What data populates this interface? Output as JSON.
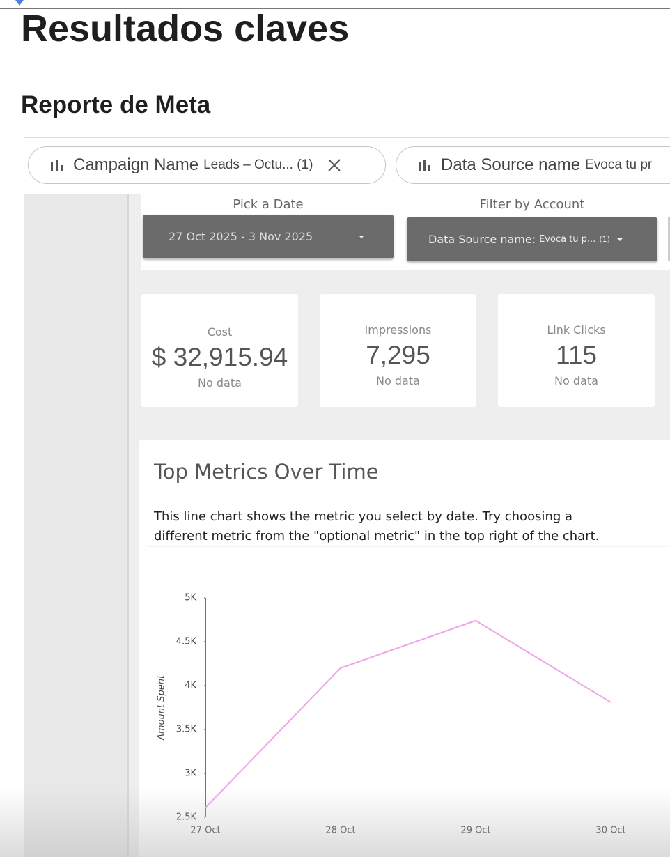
{
  "header": {
    "title": "Resultados claves",
    "subtitle": "Reporte de Meta"
  },
  "filter_chips": [
    {
      "field": "Campaign Name",
      "value": "Leads – Octu... (1)"
    },
    {
      "field": "Data Source name",
      "value": "Evoca tu pr"
    }
  ],
  "controls": [
    {
      "label": "Pick a Date",
      "value": "27 Oct 2025 - 3 Nov 2025"
    },
    {
      "label": "Filter by Account",
      "field": "Data Source name:",
      "value": "Evoca tu p...",
      "count": "(1)"
    }
  ],
  "scorecards": [
    {
      "label": "Cost",
      "value": "$ 32,915.94",
      "comparison": "No data"
    },
    {
      "label": "Impressions",
      "value": "7,295",
      "comparison": "No data"
    },
    {
      "label": "Link Clicks",
      "value": "115",
      "comparison": "No data"
    }
  ],
  "chart_section": {
    "title": "Top Metrics Over Time",
    "description": [
      "This line chart shows the metric you select by date. Try choosing a",
      "different metric from the \"optional metric\" in the top right of the chart."
    ]
  },
  "chart_data": {
    "type": "line",
    "y_label": "Amount Spent",
    "categories": [
      "27 Oct",
      "28 Oct",
      "29 Oct",
      "30 Oct"
    ],
    "series": [
      {
        "name": "Amount Spent",
        "color": "#f0a3e8",
        "values": [
          2610,
          4200,
          4740,
          3810
        ]
      }
    ],
    "ylim": [
      2500,
      5000
    ],
    "yticks": [
      {
        "value": 2500,
        "label": "2.5K"
      },
      {
        "value": 3000,
        "label": "3K"
      },
      {
        "value": 3500,
        "label": "3.5K"
      },
      {
        "value": 4000,
        "label": "4K"
      },
      {
        "value": 4500,
        "label": "4.5K"
      },
      {
        "value": 5000,
        "label": "5K"
      }
    ]
  }
}
